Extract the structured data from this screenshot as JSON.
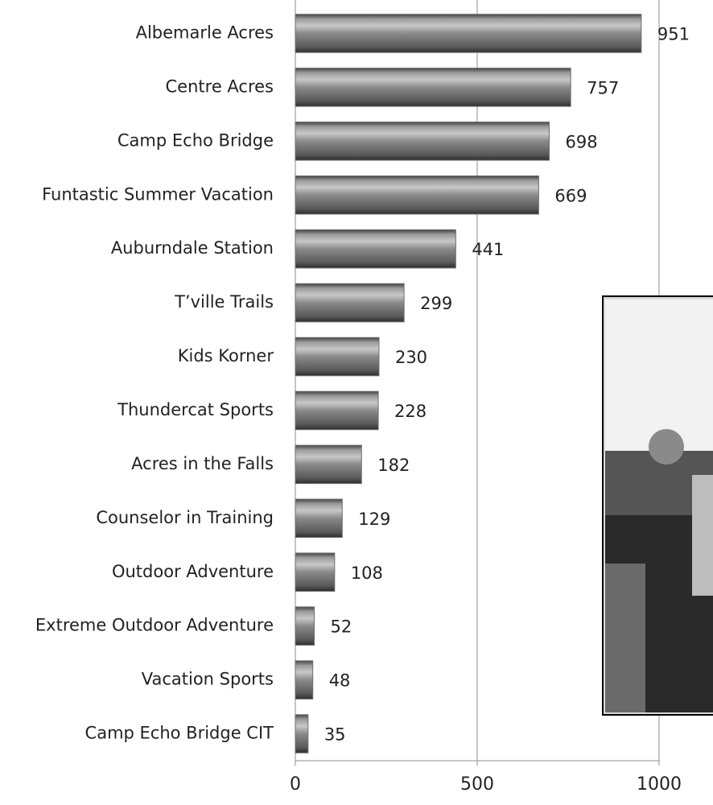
{
  "chart_data": {
    "type": "bar",
    "orientation": "horizontal",
    "categories": [
      "Albemarle Acres",
      "Centre Acres",
      "Camp Echo Bridge",
      "Funtastic Summer Vacation",
      "Auburndale Station",
      "T’ville Trails",
      "Kids Korner",
      "Thundercat Sports",
      "Acres in the Falls",
      "Counselor in Training",
      "Outdoor Adventure",
      "Extreme Outdoor Adventure",
      "Vacation Sports",
      "Camp Echo Bridge CIT"
    ],
    "values": [
      951,
      757,
      698,
      669,
      441,
      299,
      230,
      228,
      182,
      129,
      108,
      52,
      48,
      35
    ],
    "color": "#6e6e6e",
    "xlim": [
      0,
      1000
    ],
    "xticks": [
      0,
      500,
      1000
    ],
    "grid": true
  }
}
